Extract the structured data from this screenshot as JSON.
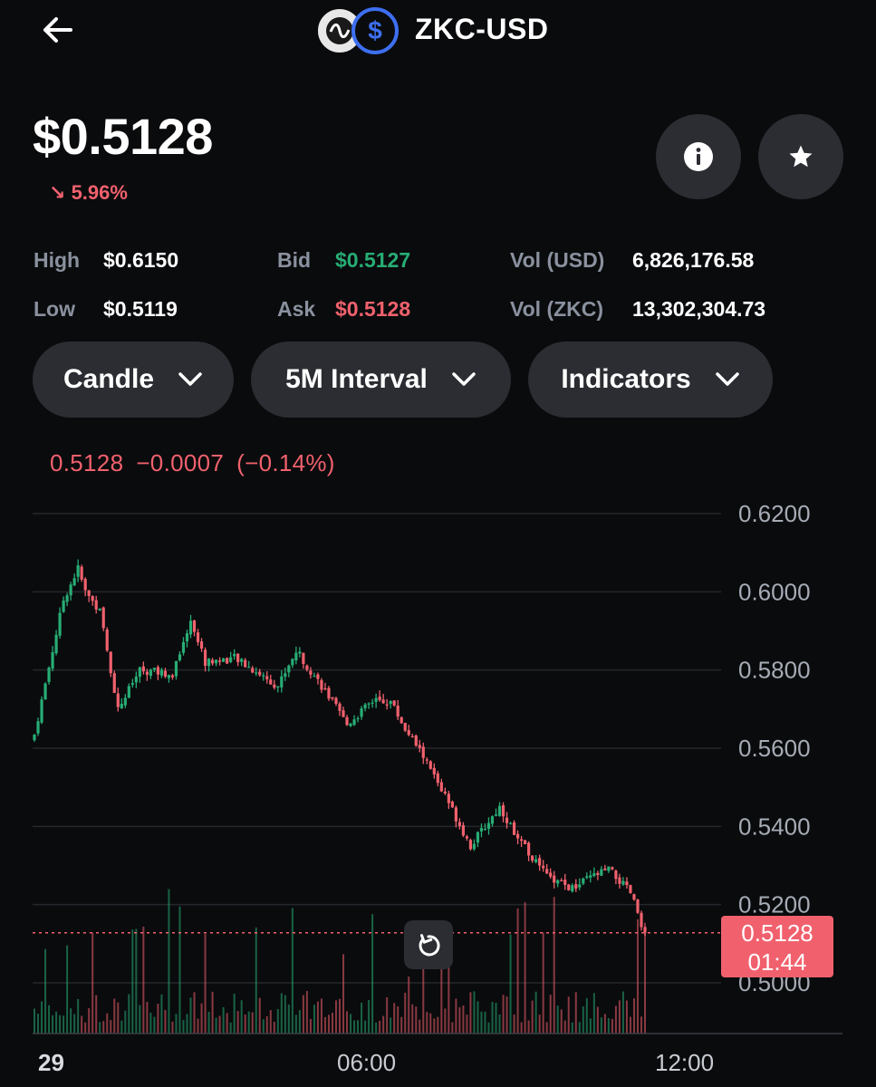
{
  "header": {
    "title": "ZKC-USD",
    "back_icon": "arrow-left-icon",
    "coin_icon": "zkc-coin-icon",
    "quote_icon": "usd-coin-icon"
  },
  "summary": {
    "price": "$0.5128",
    "change": "5.96%",
    "change_arrow": "↘",
    "change_color": "#f0616d"
  },
  "actions": {
    "info_icon": "info-icon",
    "star_icon": "star-icon"
  },
  "stats": {
    "high_label": "High",
    "high_value": "$0.6150",
    "low_label": "Low",
    "low_value": "$0.5119",
    "bid_label": "Bid",
    "bid_value": "$0.5127",
    "ask_label": "Ask",
    "ask_value": "$0.5128",
    "vol_usd_label": "Vol (USD)",
    "vol_usd_value": "6,826,176.58",
    "vol_zkc_label": "Vol (ZKC)",
    "vol_zkc_value": "13,302,304.73"
  },
  "controls": {
    "chart_type": "Candle",
    "interval": "5M Interval",
    "indicators": "Indicators"
  },
  "ohlc": {
    "close": "0.5128",
    "change": "−0.0007",
    "percent": "(−0.14%)"
  },
  "chart": {
    "y_ticks": [
      "0.6200",
      "0.6000",
      "0.5800",
      "0.5600",
      "0.5400",
      "0.5200",
      "0.5000"
    ],
    "x_ticks": [
      "29",
      "06:00",
      "12:00"
    ],
    "current_price_tag": "0.5128",
    "countdown": "01:44",
    "up_color": "#27ad75",
    "down_color": "#f0616d"
  },
  "chart_data": {
    "type": "candlestick",
    "ylim": [
      0.497,
      0.621
    ],
    "y_ticks": [
      0.62,
      0.6,
      0.58,
      0.56,
      0.54,
      0.52,
      0.5
    ],
    "x_ticks": [
      "29",
      "06:00",
      "12:00"
    ],
    "last_price": 0.5128,
    "anchors": [
      [
        0,
        0.5635
      ],
      [
        8,
        0.598
      ],
      [
        12,
        0.606
      ],
      [
        14,
        0.6
      ],
      [
        18,
        0.595
      ],
      [
        23,
        0.57
      ],
      [
        29,
        0.58
      ],
      [
        38,
        0.579
      ],
      [
        43,
        0.593
      ],
      [
        47,
        0.582
      ],
      [
        55,
        0.583
      ],
      [
        62,
        0.579
      ],
      [
        67,
        0.576
      ],
      [
        72,
        0.585
      ],
      [
        79,
        0.576
      ],
      [
        86,
        0.566
      ],
      [
        93,
        0.572
      ],
      [
        98,
        0.572
      ],
      [
        102,
        0.565
      ],
      [
        107,
        0.558
      ],
      [
        114,
        0.546
      ],
      [
        120,
        0.535
      ],
      [
        128,
        0.545
      ],
      [
        133,
        0.537
      ],
      [
        141,
        0.527
      ],
      [
        148,
        0.524
      ],
      [
        153,
        0.527
      ],
      [
        158,
        0.529
      ],
      [
        164,
        0.523
      ],
      [
        168,
        0.5128
      ]
    ],
    "candle_count": 169
  }
}
